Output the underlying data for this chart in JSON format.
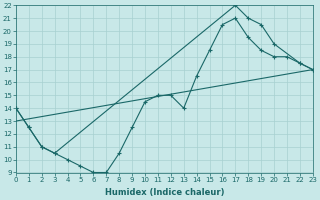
{
  "xlabel": "Humidex (Indice chaleur)",
  "xlim": [
    0,
    23
  ],
  "ylim": [
    9,
    22
  ],
  "bg_color": "#c8e8e8",
  "grid_color": "#a8d0d0",
  "line_color": "#1a6868",
  "line1": {
    "x": [
      0,
      1,
      2,
      3,
      4,
      5,
      6,
      7,
      8,
      9,
      10,
      11,
      12,
      13,
      14,
      15,
      16,
      17,
      18,
      19,
      20,
      21,
      22,
      23
    ],
    "y": [
      14,
      12.5,
      11.0,
      10.5,
      10.0,
      9.5,
      9.0,
      9.0,
      10.5,
      12.5,
      14.5,
      15.0,
      15.0,
      14.0,
      16.5,
      18.5,
      20.5,
      21.0,
      19.5,
      18.5,
      18.0,
      18.0,
      17.5,
      17.0
    ]
  },
  "line2": {
    "x": [
      0,
      1,
      2,
      3,
      17,
      18,
      19,
      20,
      22,
      23
    ],
    "y": [
      14.0,
      12.5,
      11.0,
      10.5,
      22.0,
      21.0,
      20.5,
      19.0,
      17.5,
      17.0
    ]
  },
  "line3": {
    "x": [
      0,
      23
    ],
    "y": [
      13.0,
      17.0
    ]
  },
  "xlabel_fontsize": 6,
  "tick_fontsize": 5
}
